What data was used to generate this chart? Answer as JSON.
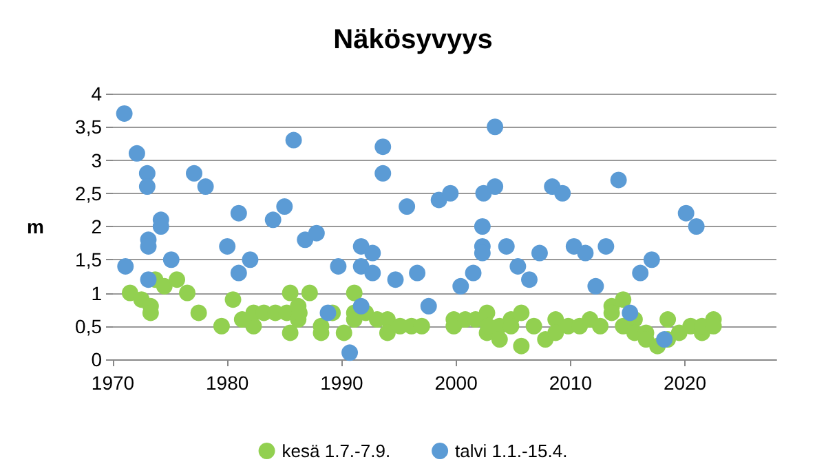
{
  "chart_data": {
    "type": "scatter",
    "title": "Näkösyvyys",
    "ylabel": "m",
    "xlim": [
      1970,
      2028
    ],
    "xticks": [
      1970,
      1980,
      1990,
      2000,
      2010,
      2020
    ],
    "ylim": [
      0,
      4
    ],
    "yticks": [
      0,
      {
        "value": 0.5,
        "label": "0,5"
      },
      1,
      {
        "value": 1.5,
        "label": "1,5"
      },
      2,
      {
        "value": 2.5,
        "label": "2,5"
      },
      3,
      {
        "value": 3.5,
        "label": "3,5"
      },
      4
    ],
    "grid": "y",
    "legend": "bottom",
    "marker": "circle",
    "series": [
      {
        "name": "kesä 1.7.-7.9.",
        "color": "#92d050",
        "x": [
          1971.5,
          1972.5,
          1973.3,
          1973.3,
          1973.7,
          1974.5,
          1975.6,
          1976.5,
          1977.5,
          1979.5,
          1980.5,
          1981.3,
          1982.3,
          1982.3,
          1983.2,
          1984.2,
          1985.2,
          1985.5,
          1985.5,
          1986.2,
          1986.2,
          1986.3,
          1987.2,
          1988.2,
          1988.2,
          1989.2,
          1990.2,
          1991.1,
          1991.1,
          1991.1,
          1992.1,
          1993.1,
          1994,
          1994,
          1995.1,
          1996.1,
          1997,
          1999.8,
          1999.8,
          2000.8,
          2001.7,
          2002.7,
          2002.7,
          2002.8,
          2003.8,
          2003.8,
          2004.8,
          2004.8,
          2005.7,
          2005.7,
          2006.8,
          2007.8,
          2008.7,
          2008.7,
          2009.8,
          2010.8,
          2011.7,
          2012.6,
          2013.6,
          2013.6,
          2014.6,
          2014.6,
          2015.6,
          2015.6,
          2016.6,
          2016.6,
          2017.6,
          2018.5,
          2018.5,
          2019.5,
          2020.5,
          2021.5,
          2021.5,
          2022.5,
          2022.5
        ],
        "values": [
          1.0,
          0.9,
          0.8,
          0.7,
          1.2,
          1.1,
          1.2,
          1.0,
          0.7,
          0.5,
          0.9,
          0.6,
          0.5,
          0.7,
          0.7,
          0.7,
          0.7,
          1.0,
          0.4,
          0.8,
          0.6,
          0.7,
          1.0,
          0.5,
          0.4,
          0.7,
          0.4,
          1.0,
          0.7,
          0.6,
          0.7,
          0.6,
          0.6,
          0.4,
          0.5,
          0.5,
          0.5,
          0.6,
          0.5,
          0.6,
          0.6,
          0.7,
          0.4,
          0.5,
          0.5,
          0.3,
          0.6,
          0.5,
          0.7,
          0.2,
          0.5,
          0.3,
          0.6,
          0.4,
          0.5,
          0.5,
          0.6,
          0.5,
          0.8,
          0.7,
          0.9,
          0.5,
          0.6,
          0.4,
          0.4,
          0.3,
          0.2,
          0.6,
          0.3,
          0.4,
          0.5,
          0.4,
          0.5,
          0.6,
          0.5
        ]
      },
      {
        "name": "talvi 1.1.-15.4.",
        "color": "#5b9bd5",
        "x": [
          1971.0,
          1971.1,
          1972.1,
          1973.0,
          1973.0,
          1973.1,
          1973.1,
          1973.1,
          1974.2,
          1974.2,
          1975.1,
          1977.1,
          1978.1,
          1980.0,
          1981.0,
          1981.0,
          1982.0,
          1984.0,
          1985.0,
          1985.8,
          1986.8,
          1987.8,
          1988.8,
          1989.7,
          1990.7,
          1991.7,
          1991.7,
          1991.7,
          1992.7,
          1992.7,
          1993.6,
          1993.6,
          1994.7,
          1995.7,
          1996.6,
          1997.6,
          1998.5,
          1999.5,
          2000.4,
          2001.5,
          2002.3,
          2002.3,
          2002.3,
          2002.4,
          2003.4,
          2003.4,
          2004.4,
          2005.4,
          2006.4,
          2007.3,
          2008.4,
          2009.3,
          2010.3,
          2011.3,
          2012.2,
          2013.1,
          2014.2,
          2015.2,
          2016.1,
          2017.1,
          2018.2,
          2020.1,
          2021.0
        ],
        "values": [
          3.7,
          1.4,
          3.1,
          2.8,
          2.6,
          1.8,
          1.7,
          1.2,
          2.1,
          2.0,
          1.5,
          2.8,
          2.6,
          1.7,
          2.2,
          1.3,
          1.5,
          2.1,
          2.3,
          3.3,
          1.8,
          1.9,
          0.7,
          1.4,
          0.1,
          1.7,
          1.4,
          0.8,
          1.6,
          1.3,
          3.2,
          2.8,
          1.2,
          2.3,
          1.3,
          0.8,
          2.4,
          2.5,
          1.1,
          1.3,
          2.0,
          1.7,
          1.6,
          2.5,
          3.5,
          2.6,
          1.7,
          1.4,
          1.2,
          1.6,
          2.6,
          2.5,
          1.7,
          1.6,
          1.1,
          1.7,
          2.7,
          0.7,
          1.3,
          1.5,
          0.3,
          2.2,
          2.0
        ]
      }
    ]
  }
}
